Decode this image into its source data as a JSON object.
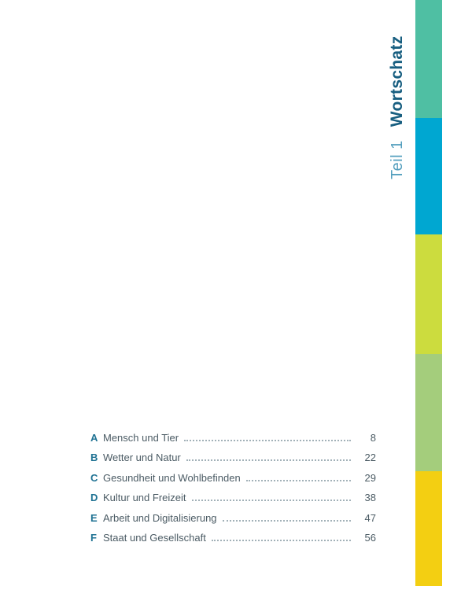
{
  "header": {
    "part_label": "Teil 1",
    "part_title": "Wortschatz"
  },
  "toc": {
    "entries": [
      {
        "letter": "A",
        "title": "Mensch und Tier",
        "page": "8"
      },
      {
        "letter": "B",
        "title": "Wetter und Natur",
        "page": "22"
      },
      {
        "letter": "C",
        "title": "Gesundheit und Wohlbefinden",
        "page": "29"
      },
      {
        "letter": "D",
        "title": "Kultur und Freizeit",
        "page": "38"
      },
      {
        "letter": "E",
        "title": "Arbeit und Digitalisierung",
        "page": "47"
      },
      {
        "letter": "F",
        "title": "Staat und Gesellschaft",
        "page": "56"
      }
    ]
  },
  "colors": {
    "title_dark_blue": "#175e80",
    "title_light_blue": "#549fbe",
    "toc_letter_blue": "#1f7293",
    "toc_text_gray": "#4b5b64"
  },
  "color_bar": {
    "segments": [
      {
        "name": "teal-segment",
        "color": "#4fbfa3"
      },
      {
        "name": "blue-segment",
        "color": "#00a7d1"
      },
      {
        "name": "yellow-green-segment",
        "color": "#ccdc3e"
      },
      {
        "name": "light-green-segment",
        "color": "#a4cd7c"
      },
      {
        "name": "yellow-segment",
        "color": "#f3cf12"
      }
    ]
  }
}
